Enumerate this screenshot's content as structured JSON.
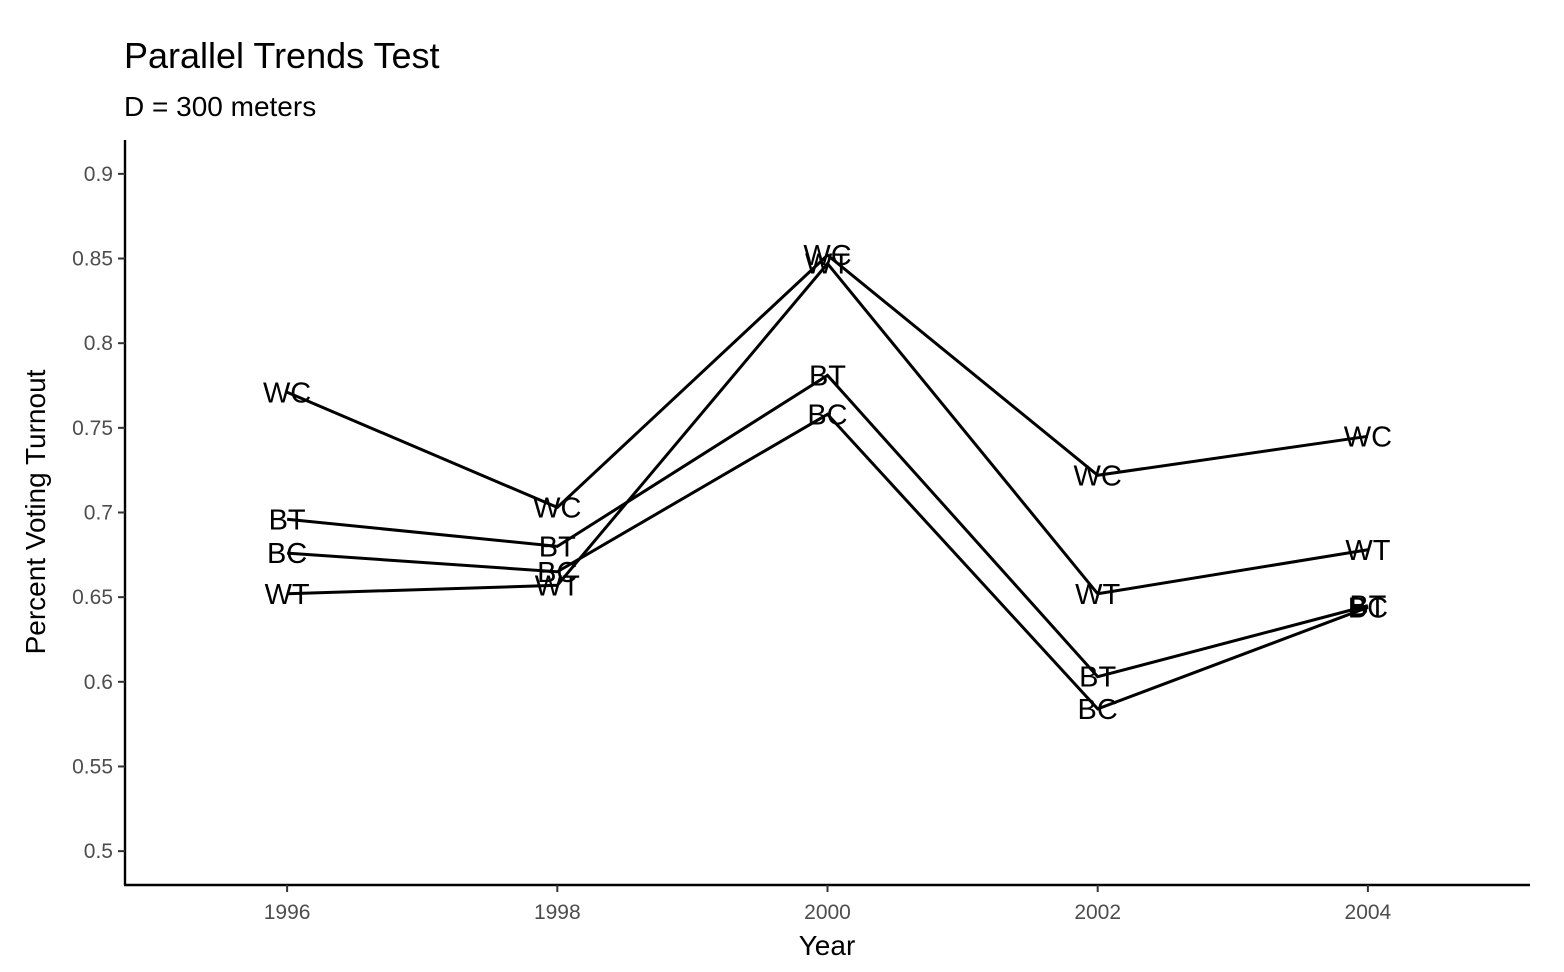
{
  "chart_data": {
    "type": "line",
    "title": "Parallel Trends Test",
    "subtitle": "D = 300 meters",
    "xlabel": "Year",
    "ylabel": "Percent Voting Turnout",
    "x": [
      1996,
      1998,
      2000,
      2002,
      2004
    ],
    "xticks": [
      "1996",
      "1998",
      "2000",
      "2002",
      "2004"
    ],
    "yticks": [
      "0.5",
      "0.55",
      "0.6",
      "0.65",
      "0.7",
      "0.75",
      "0.8",
      "0.85",
      "0.9"
    ],
    "xlim": [
      1994.8,
      2005.2
    ],
    "ylim": [
      0.48,
      0.92
    ],
    "grid": false,
    "legend": "none",
    "series": [
      {
        "label": "WC",
        "values": [
          0.771,
          0.703,
          0.852,
          0.722,
          0.745
        ]
      },
      {
        "label": "WT",
        "values": [
          0.652,
          0.657,
          0.847,
          0.652,
          0.678
        ]
      },
      {
        "label": "BT",
        "values": [
          0.696,
          0.68,
          0.781,
          0.603,
          0.645
        ]
      },
      {
        "label": "BC",
        "values": [
          0.676,
          0.665,
          0.758,
          0.584,
          0.644
        ]
      }
    ]
  }
}
